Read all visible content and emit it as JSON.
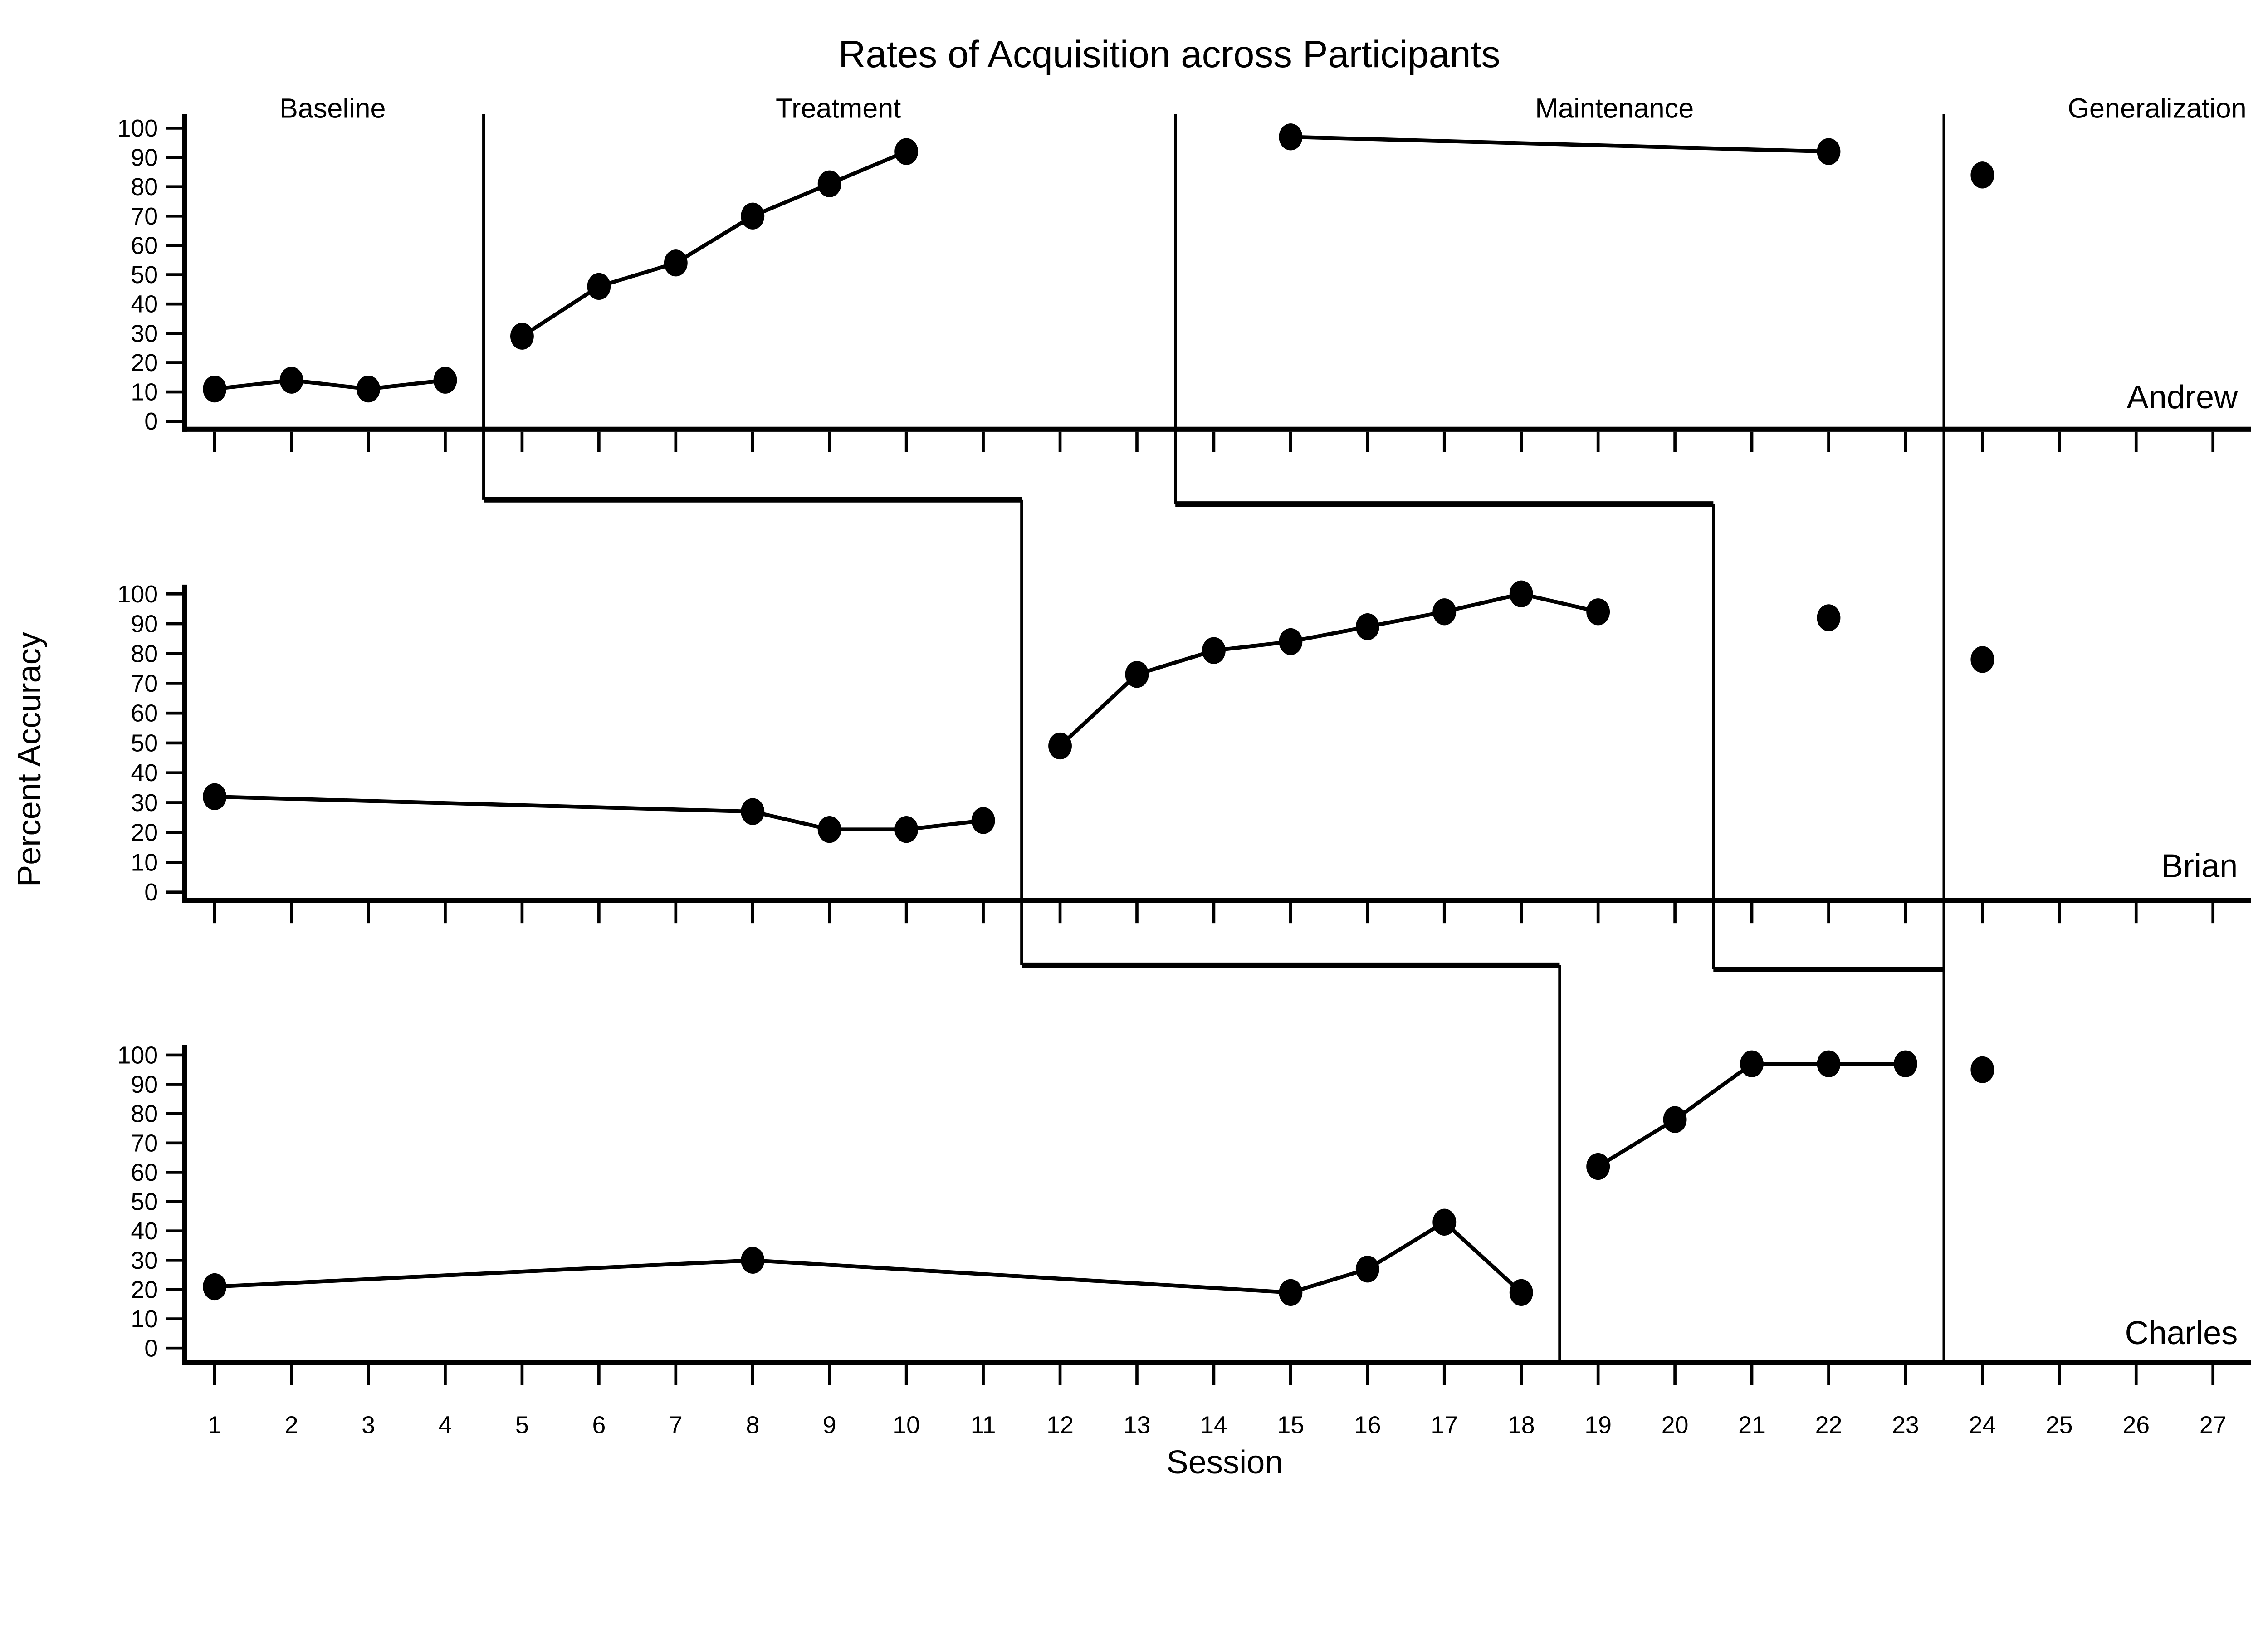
{
  "title": "Rates of Acquisition across Participants",
  "colors": {
    "foreground": "#000000",
    "background": "#ffffff"
  },
  "phase_labels": [
    "Baseline",
    "Treatment",
    "Maintenance",
    "Generalization"
  ],
  "x_axis": {
    "label": "Session",
    "ticks": [
      1,
      2,
      3,
      4,
      5,
      6,
      7,
      8,
      9,
      10,
      11,
      12,
      13,
      14,
      15,
      16,
      17,
      18,
      19,
      20,
      21,
      22,
      23,
      24,
      25,
      26,
      27
    ]
  },
  "y_axis": {
    "label": "Percent Accuracy",
    "ticks": [
      0,
      10,
      20,
      30,
      40,
      50,
      60,
      70,
      80,
      90,
      100
    ]
  },
  "chart_data": {
    "type": "line",
    "design": "multiple-baseline-across-participants",
    "title": "Rates of Acquisition across Participants",
    "xlabel": "Session",
    "ylabel": "Percent Accuracy",
    "xlim": [
      1,
      27
    ],
    "ylim": [
      0,
      100
    ],
    "grid": false,
    "marker": "filled-circle",
    "phase_boundaries": {
      "baseline_to_treatment_steps": [
        4.5,
        11.5,
        18.5
      ],
      "treatment_to_maintenance_steps": [
        13.5,
        20.5
      ],
      "generalization_line": 23.5
    },
    "panels": [
      {
        "participant": "Andrew",
        "series": [
          {
            "phase": "Baseline",
            "connected": true,
            "points": [
              [
                1,
                11
              ],
              [
                2,
                14
              ],
              [
                3,
                11
              ],
              [
                4,
                14
              ]
            ]
          },
          {
            "phase": "Treatment",
            "connected": true,
            "points": [
              [
                5,
                29
              ],
              [
                6,
                46
              ],
              [
                7,
                54
              ],
              [
                8,
                70
              ],
              [
                9,
                81
              ],
              [
                10,
                92
              ]
            ]
          },
          {
            "phase": "Maintenance",
            "connected": true,
            "points": [
              [
                15,
                97
              ],
              [
                22,
                92
              ]
            ]
          },
          {
            "phase": "Generalization",
            "connected": false,
            "points": [
              [
                24,
                84
              ]
            ]
          }
        ]
      },
      {
        "participant": "Brian",
        "series": [
          {
            "phase": "Baseline",
            "connected": true,
            "points": [
              [
                1,
                32
              ],
              [
                8,
                27
              ],
              [
                9,
                21
              ],
              [
                10,
                21
              ],
              [
                11,
                24
              ]
            ]
          },
          {
            "phase": "Treatment",
            "connected": true,
            "points": [
              [
                12,
                49
              ],
              [
                13,
                73
              ],
              [
                14,
                81
              ],
              [
                15,
                84
              ],
              [
                16,
                89
              ],
              [
                17,
                94
              ],
              [
                18,
                100
              ],
              [
                19,
                94
              ]
            ]
          },
          {
            "phase": "Maintenance",
            "connected": false,
            "points": [
              [
                22,
                92
              ]
            ]
          },
          {
            "phase": "Generalization",
            "connected": false,
            "points": [
              [
                24,
                78
              ]
            ]
          }
        ]
      },
      {
        "participant": "Charles",
        "series": [
          {
            "phase": "Baseline",
            "connected": true,
            "points": [
              [
                1,
                21
              ],
              [
                8,
                30
              ],
              [
                15,
                19
              ],
              [
                16,
                27
              ],
              [
                17,
                43
              ],
              [
                18,
                19
              ]
            ]
          },
          {
            "phase": "Treatment",
            "connected": true,
            "points": [
              [
                19,
                62
              ],
              [
                20,
                78
              ],
              [
                21,
                97
              ],
              [
                22,
                97
              ],
              [
                23,
                97
              ]
            ]
          },
          {
            "phase": "Generalization",
            "connected": false,
            "points": [
              [
                24,
                95
              ]
            ]
          }
        ]
      }
    ]
  }
}
